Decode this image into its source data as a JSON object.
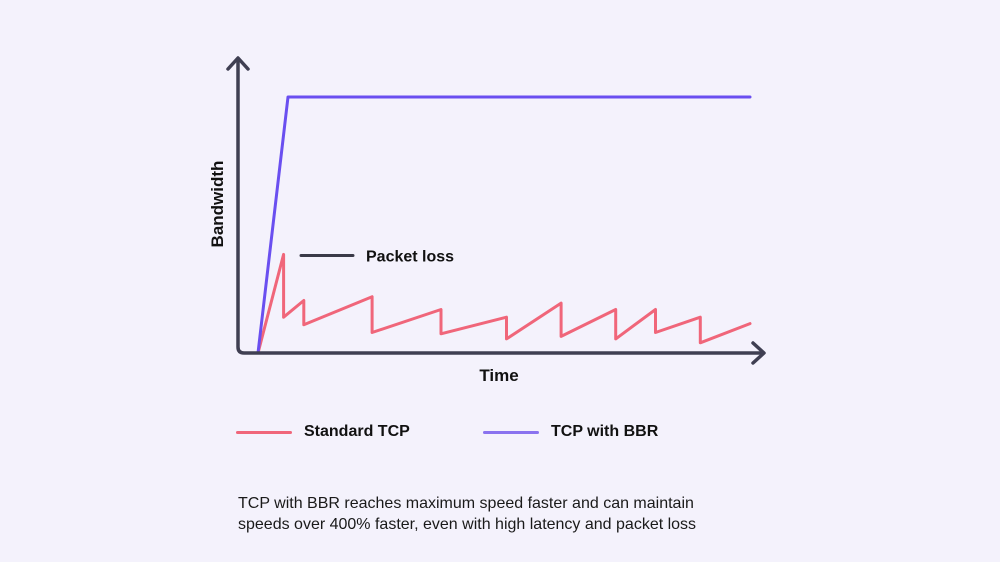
{
  "chart_data": {
    "type": "line",
    "title": "",
    "xlabel": "Time",
    "ylabel": "Bandwidth",
    "xlim": [
      0,
      100
    ],
    "ylim": [
      0,
      100
    ],
    "axis_ticks": false,
    "grid": false,
    "legend_position": "bottom",
    "series": [
      {
        "name": "Standard TCP",
        "color": "#f0667a",
        "points": [
          [
            0,
            0
          ],
          [
            5.2,
            38.5
          ],
          [
            5.2,
            14
          ],
          [
            9.3,
            20.5
          ],
          [
            9.3,
            11
          ],
          [
            23.2,
            22
          ],
          [
            23.2,
            8
          ],
          [
            37.2,
            17
          ],
          [
            37.2,
            7.5
          ],
          [
            50.5,
            14
          ],
          [
            50.5,
            5.5
          ],
          [
            61.6,
            19.5
          ],
          [
            61.6,
            6.5
          ],
          [
            72.7,
            17
          ],
          [
            72.7,
            5.5
          ],
          [
            80.8,
            17
          ],
          [
            80.8,
            8
          ],
          [
            89.9,
            14
          ],
          [
            89.9,
            4
          ],
          [
            100,
            11.5
          ]
        ]
      },
      {
        "name": "TCP with BBR",
        "color": "#6a4ff0",
        "points": [
          [
            0,
            0
          ],
          [
            6.1,
            100
          ],
          [
            100,
            100
          ]
        ]
      }
    ],
    "annotations": [
      {
        "text": "Packet loss",
        "target_series": "Standard TCP",
        "y": 38.5
      }
    ]
  },
  "legend": {
    "items": [
      {
        "label": "Standard TCP",
        "color": "#f0667a"
      },
      {
        "label": "TCP with BBR",
        "color": "#8a73ef"
      }
    ]
  },
  "caption": {
    "line1": "TCP with BBR reaches maximum speed faster and can maintain",
    "line2": "speeds over 400% faster, even with high latency and packet loss"
  },
  "colors": {
    "axis": "#3f3f52",
    "background": "#f4f2fc",
    "annotation_line": "#3a3a48"
  }
}
